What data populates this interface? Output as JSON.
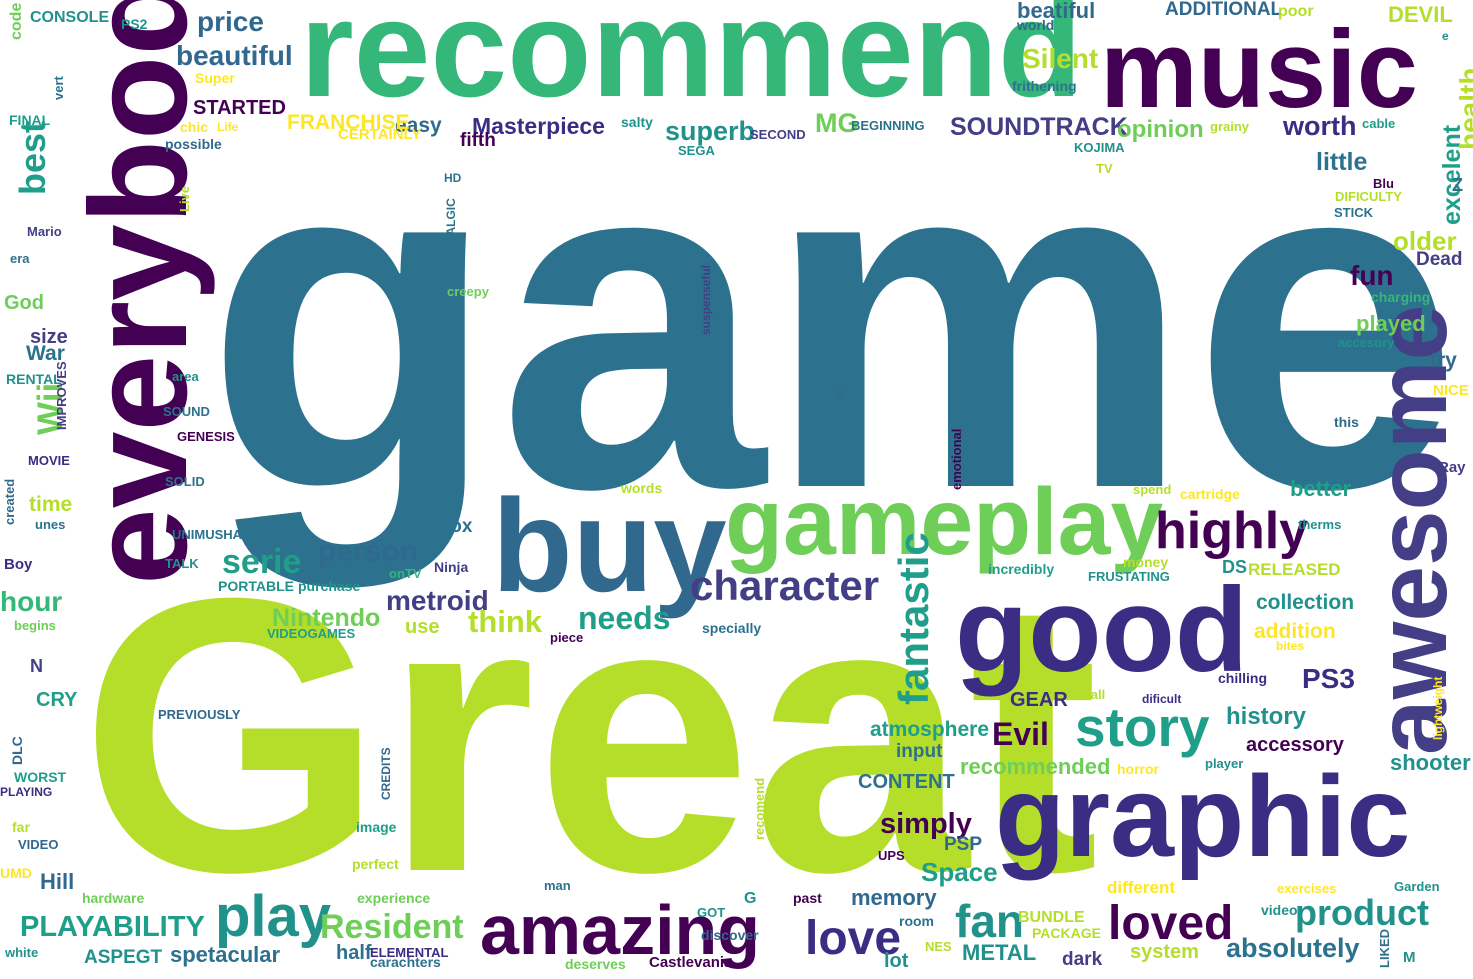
{
  "palette": {
    "dark_purple": "#440154",
    "indigo": "#3b2c84",
    "blue_violet": "#433e85",
    "steel_blue": "#31688e",
    "teal_blue": "#2c728e",
    "teal": "#21918c",
    "sea_green": "#1f9e89",
    "green": "#35b779",
    "light_green": "#6ece58",
    "yellow_green": "#b5de2b",
    "yellow": "#fde725"
  },
  "words": [
    {
      "text": "game",
      "color": "teal_blue"
    },
    {
      "text": "Great",
      "color": "yellow_green"
    },
    {
      "text": "recommend",
      "color": "green"
    },
    {
      "text": "music",
      "color": "dark_purple"
    },
    {
      "text": "everybody",
      "color": "dark_purple"
    },
    {
      "text": "buy",
      "color": "steel_blue"
    },
    {
      "text": "gameplay",
      "color": "light_green"
    },
    {
      "text": "good",
      "color": "indigo"
    },
    {
      "text": "graphic",
      "color": "indigo"
    },
    {
      "text": "awesome",
      "color": "blue_violet"
    },
    {
      "text": "amazing",
      "color": "dark_purple"
    },
    {
      "text": "highly",
      "color": "dark_purple"
    },
    {
      "text": "story",
      "color": "sea_green"
    },
    {
      "text": "character",
      "color": "blue_violet"
    },
    {
      "text": "play",
      "color": "teal"
    },
    {
      "text": "loved",
      "color": "dark_purple"
    },
    {
      "text": "love",
      "color": "indigo"
    },
    {
      "text": "fantastic",
      "color": "sea_green"
    },
    {
      "text": "product",
      "color": "teal"
    },
    {
      "text": "fan",
      "color": "teal"
    },
    {
      "text": "Resident",
      "color": "light_green"
    },
    {
      "text": "PLAYABILITY",
      "color": "sea_green"
    },
    {
      "text": "serie",
      "color": "sea_green"
    },
    {
      "text": "person",
      "color": "steel_blue"
    },
    {
      "text": "metroid",
      "color": "blue_violet"
    },
    {
      "text": "needs",
      "color": "sea_green"
    },
    {
      "text": "think",
      "color": "yellow_green"
    },
    {
      "text": "Nintendo",
      "color": "light_green"
    },
    {
      "text": "price",
      "color": "steel_blue"
    },
    {
      "text": "beautiful",
      "color": "steel_blue"
    },
    {
      "text": "best",
      "color": "sea_green"
    },
    {
      "text": "hour",
      "color": "green"
    },
    {
      "text": "Wii",
      "color": "light_green"
    },
    {
      "text": "SOUNDTRACK",
      "color": "blue_violet"
    },
    {
      "text": "superb",
      "color": "teal"
    },
    {
      "text": "worth",
      "color": "indigo"
    },
    {
      "text": "opinion",
      "color": "light_green"
    },
    {
      "text": "Silent",
      "color": "yellow_green"
    },
    {
      "text": "beatiful",
      "color": "steel_blue"
    },
    {
      "text": "world",
      "color": "steel_blue"
    },
    {
      "text": "ADDITIONAL",
      "color": "steel_blue"
    },
    {
      "text": "poor",
      "color": "yellow_green"
    },
    {
      "text": "DEVIL",
      "color": "yellow_green"
    },
    {
      "text": "Masterpiece",
      "color": "indigo"
    },
    {
      "text": "easy",
      "color": "steel_blue"
    },
    {
      "text": "MG",
      "color": "light_green"
    },
    {
      "text": "STARTED",
      "color": "dark_purple"
    },
    {
      "text": "FRANCHISE",
      "color": "yellow"
    },
    {
      "text": "CERTAINLY",
      "color": "yellow"
    },
    {
      "text": "little",
      "color": "teal_blue"
    },
    {
      "text": "excelent",
      "color": "sea_green"
    },
    {
      "text": "health",
      "color": "yellow_green"
    },
    {
      "text": "older",
      "color": "yellow_green"
    },
    {
      "text": "Dead",
      "color": "blue_violet"
    },
    {
      "text": "fun",
      "color": "dark_purple"
    },
    {
      "text": "played",
      "color": "light_green"
    },
    {
      "text": "try",
      "color": "steel_blue"
    },
    {
      "text": "NICE",
      "color": "yellow"
    },
    {
      "text": "Ray",
      "color": "blue_violet"
    },
    {
      "text": "better",
      "color": "sea_green"
    },
    {
      "text": "collection",
      "color": "teal"
    },
    {
      "text": "addition",
      "color": "yellow"
    },
    {
      "text": "PS3",
      "color": "indigo"
    },
    {
      "text": "history",
      "color": "teal"
    },
    {
      "text": "accessory",
      "color": "dark_purple"
    },
    {
      "text": "shooter",
      "color": "teal"
    },
    {
      "text": "absolutely",
      "color": "teal_blue"
    },
    {
      "text": "Evil",
      "color": "dark_purple"
    },
    {
      "text": "atmosphere",
      "color": "sea_green"
    },
    {
      "text": "input",
      "color": "teal_blue"
    },
    {
      "text": "recommended",
      "color": "light_green"
    },
    {
      "text": "simply",
      "color": "dark_purple"
    },
    {
      "text": "PSP",
      "color": "steel_blue"
    },
    {
      "text": "Space",
      "color": "sea_green"
    },
    {
      "text": "memory",
      "color": "steel_blue"
    },
    {
      "text": "GEAR",
      "color": "indigo"
    },
    {
      "text": "CONTENT",
      "color": "teal_blue"
    },
    {
      "text": "Xbox",
      "color": "teal_blue"
    },
    {
      "text": "Ninja",
      "color": "blue_violet"
    },
    {
      "text": "spetacular",
      "color": "teal_blue"
    },
    {
      "text": "ASPEGT",
      "color": "teal"
    },
    {
      "text": "half",
      "color": "teal_blue"
    },
    {
      "text": "system",
      "color": "yellow_green"
    },
    {
      "text": "dark",
      "color": "blue_violet"
    },
    {
      "text": "METAL",
      "color": "teal"
    },
    {
      "text": "lot",
      "color": "teal"
    },
    {
      "text": "time",
      "color": "yellow_green"
    },
    {
      "text": "War",
      "color": "teal_blue"
    },
    {
      "text": "size",
      "color": "blue_violet"
    },
    {
      "text": "God",
      "color": "light_green"
    },
    {
      "text": "Hill",
      "color": "steel_blue"
    },
    {
      "text": "CONSOLE",
      "color": "teal"
    },
    {
      "text": "PS2",
      "color": "teal"
    },
    {
      "text": "code",
      "color": "light_green"
    },
    {
      "text": "FINAL",
      "color": "sea_green"
    },
    {
      "text": "Super",
      "color": "yellow"
    },
    {
      "text": "chic",
      "color": "yellow"
    },
    {
      "text": "Life",
      "color": "yellow"
    },
    {
      "text": "possible",
      "color": "steel_blue"
    },
    {
      "text": "Mario",
      "color": "blue_violet"
    },
    {
      "text": "era",
      "color": "teal_blue"
    },
    {
      "text": "RENTAL",
      "color": "teal"
    },
    {
      "text": "SOUND",
      "color": "teal_blue"
    },
    {
      "text": "GENESIS",
      "color": "dark_purple"
    },
    {
      "text": "MOVIE",
      "color": "indigo"
    },
    {
      "text": "SOLID",
      "color": "teal_blue"
    },
    {
      "text": "UNIMUSHA",
      "color": "teal_blue"
    },
    {
      "text": "TALK",
      "color": "teal"
    },
    {
      "text": "PORTABLE",
      "color": "teal"
    },
    {
      "text": "purchase",
      "color": "teal"
    },
    {
      "text": "Boy",
      "color": "indigo"
    },
    {
      "text": "begins",
      "color": "light_green"
    },
    {
      "text": "CRY",
      "color": "sea_green"
    },
    {
      "text": "PREVIOUSLY",
      "color": "steel_blue"
    },
    {
      "text": "WORST",
      "color": "sea_green"
    },
    {
      "text": "PLAYING",
      "color": "indigo"
    },
    {
      "text": "far",
      "color": "yellow_green"
    },
    {
      "text": "image",
      "color": "sea_green"
    },
    {
      "text": "perfect",
      "color": "yellow_green"
    },
    {
      "text": "hardware",
      "color": "light_green"
    },
    {
      "text": "experience",
      "color": "light_green"
    },
    {
      "text": "VIDEOGAMES",
      "color": "sea_green"
    },
    {
      "text": "use",
      "color": "yellow_green"
    },
    {
      "text": "specially",
      "color": "teal_blue"
    },
    {
      "text": "piece",
      "color": "dark_purple"
    },
    {
      "text": "incredibly",
      "color": "sea_green"
    },
    {
      "text": "FRUSTATING",
      "color": "teal"
    },
    {
      "text": "DS",
      "color": "teal"
    },
    {
      "text": "RELEASED",
      "color": "yellow_green"
    },
    {
      "text": "money",
      "color": "yellow_green"
    },
    {
      "text": "spend",
      "color": "yellow_green"
    },
    {
      "text": "cartridge",
      "color": "yellow"
    },
    {
      "text": "different",
      "color": "yellow"
    },
    {
      "text": "BUNDLE",
      "color": "yellow_green"
    },
    {
      "text": "PACKAGE",
      "color": "yellow_green"
    },
    {
      "text": "video",
      "color": "teal"
    },
    {
      "text": "Garden",
      "color": "teal"
    },
    {
      "text": "exercises",
      "color": "yellow"
    },
    {
      "text": "horror",
      "color": "yellow"
    },
    {
      "text": "player",
      "color": "teal"
    },
    {
      "text": "chilling",
      "color": "indigo"
    },
    {
      "text": "room",
      "color": "teal_blue"
    },
    {
      "text": "past",
      "color": "dark_purple"
    },
    {
      "text": "NES",
      "color": "yellow_green"
    },
    {
      "text": "discover",
      "color": "steel_blue"
    },
    {
      "text": "GOT",
      "color": "teal"
    },
    {
      "text": "G",
      "color": "teal"
    },
    {
      "text": "man",
      "color": "teal_blue"
    },
    {
      "text": "carachters",
      "color": "teal_blue"
    },
    {
      "text": "deserves",
      "color": "light_green"
    },
    {
      "text": "Castlevania",
      "color": "dark_purple"
    },
    {
      "text": "ELEMENTAL",
      "color": "indigo"
    },
    {
      "text": "white",
      "color": "teal"
    },
    {
      "text": "M",
      "color": "teal"
    },
    {
      "text": "creepy",
      "color": "light_green"
    },
    {
      "text": "HD",
      "color": "teal_blue"
    },
    {
      "text": "fifth",
      "color": "dark_purple"
    },
    {
      "text": "SEGA",
      "color": "teal"
    },
    {
      "text": "SECOND",
      "color": "blue_violet"
    },
    {
      "text": "BEGINNING",
      "color": "teal_blue"
    },
    {
      "text": "salty",
      "color": "teal"
    },
    {
      "text": "KOJIMA",
      "color": "teal"
    },
    {
      "text": "TV",
      "color": "yellow_green"
    },
    {
      "text": "frithening",
      "color": "teal_blue"
    },
    {
      "text": "grainy",
      "color": "yellow_green"
    },
    {
      "text": "cable",
      "color": "sea_green"
    },
    {
      "text": "Blu",
      "color": "dark_purple"
    },
    {
      "text": "DIFICULTY",
      "color": "yellow_green"
    },
    {
      "text": "STICK",
      "color": "teal_blue"
    },
    {
      "text": "Z",
      "color": "teal_blue"
    },
    {
      "text": "charging",
      "color": "green"
    },
    {
      "text": "accesory",
      "color": "teal"
    },
    {
      "text": "this",
      "color": "steel_blue"
    },
    {
      "text": "therms",
      "color": "teal"
    },
    {
      "text": "bites",
      "color": "yellow"
    },
    {
      "text": "small",
      "color": "yellow_green"
    },
    {
      "text": "dificult",
      "color": "indigo"
    },
    {
      "text": "area",
      "color": "teal"
    },
    {
      "text": "unes",
      "color": "teal_blue"
    },
    {
      "text": "words",
      "color": "yellow_green"
    },
    {
      "text": "onTV",
      "color": "green"
    },
    {
      "text": "UPS",
      "color": "dark_purple"
    },
    {
      "text": "u",
      "color": "steel_blue"
    },
    {
      "text": "N",
      "color": "blue_violet"
    },
    {
      "text": "UMD",
      "color": "yellow"
    },
    {
      "text": "VIDEO",
      "color": "steel_blue"
    },
    {
      "text": "vert",
      "color": "teal_blue"
    },
    {
      "text": "Live",
      "color": "yellow_green"
    },
    {
      "text": "NOSTALGIC",
      "color": "teal_blue"
    },
    {
      "text": "suspenseful",
      "color": "blue_violet"
    },
    {
      "text": "emotional",
      "color": "dark_purple"
    },
    {
      "text": "IMPROVES",
      "color": "blue_violet"
    },
    {
      "text": "created",
      "color": "steel_blue"
    },
    {
      "text": "DLC",
      "color": "steel_blue"
    },
    {
      "text": "CREDITS",
      "color": "steel_blue"
    },
    {
      "text": "recomend",
      "color": "yellow_green"
    },
    {
      "text": "lightweight",
      "color": "yellow"
    },
    {
      "text": "LIKED",
      "color": "teal_blue"
    },
    {
      "text": "e",
      "color": "teal"
    }
  ]
}
